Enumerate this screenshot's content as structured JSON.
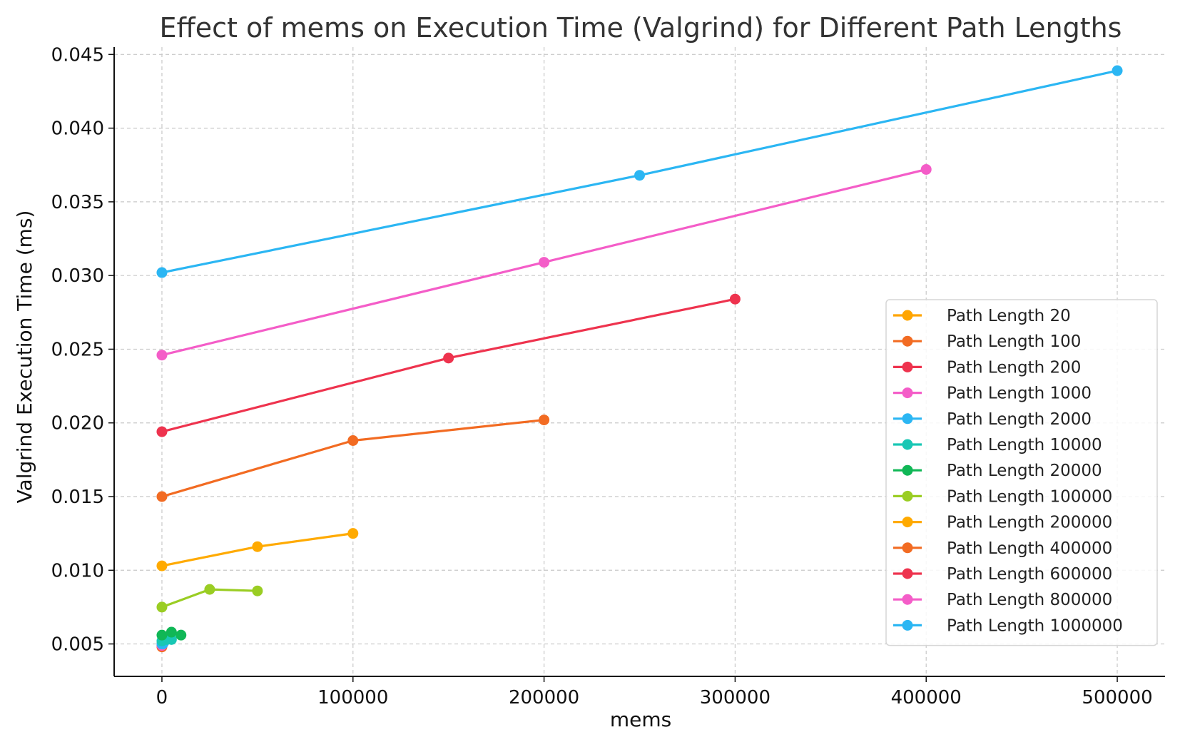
{
  "chart_data": {
    "type": "line",
    "title": "Effect of mems on Execution Time (Valgrind) for Different Path Lengths",
    "xlabel": "mems",
    "ylabel": "Valgrind Execution Time (ms)",
    "xlim": [
      -25000,
      525000
    ],
    "ylim": [
      0.0028,
      0.0455
    ],
    "x_ticks": [
      0,
      100000,
      200000,
      300000,
      400000,
      500000
    ],
    "x_tick_labels": [
      "0",
      "100000",
      "200000",
      "300000",
      "400000",
      "500000"
    ],
    "y_ticks": [
      0.005,
      0.01,
      0.015,
      0.02,
      0.025,
      0.03,
      0.035,
      0.04,
      0.045
    ],
    "y_tick_labels": [
      "0.005",
      "0.010",
      "0.015",
      "0.020",
      "0.025",
      "0.030",
      "0.035",
      "0.040",
      "0.045"
    ],
    "grid": true,
    "legend_position": "lower-right",
    "series": [
      {
        "name": "Path Length 20",
        "color": "#FFA500",
        "x": [
          0,
          5,
          10
        ],
        "y": [
          0.0049,
          0.005,
          0.005
        ]
      },
      {
        "name": "Path Length 100",
        "color": "#F26B22",
        "x": [
          0,
          25,
          50
        ],
        "y": [
          0.0048,
          0.0049,
          0.0049
        ]
      },
      {
        "name": "Path Length 200",
        "color": "#EE334E",
        "x": [
          0,
          50,
          100
        ],
        "y": [
          0.0049,
          0.0049,
          0.005
        ]
      },
      {
        "name": "Path Length 1000",
        "color": "#F45DC8",
        "x": [
          0,
          250,
          500
        ],
        "y": [
          0.0049,
          0.005,
          0.005
        ]
      },
      {
        "name": "Path Length 2000",
        "color": "#2BB6F3",
        "x": [
          0,
          500,
          1000
        ],
        "y": [
          0.005,
          0.005,
          0.0051
        ]
      },
      {
        "name": "Path Length 10000",
        "color": "#19C7B4",
        "x": [
          0,
          2500,
          5000
        ],
        "y": [
          0.0052,
          0.0053,
          0.0053
        ]
      },
      {
        "name": "Path Length 20000",
        "color": "#10B756",
        "x": [
          0,
          5000,
          10000
        ],
        "y": [
          0.0056,
          0.0058,
          0.0056
        ]
      },
      {
        "name": "Path Length 100000",
        "color": "#9ACD23",
        "x": [
          0,
          25000,
          50000
        ],
        "y": [
          0.0075,
          0.0087,
          0.0086
        ]
      },
      {
        "name": "Path Length 200000",
        "color": "#FFAA00",
        "x": [
          0,
          50000,
          100000
        ],
        "y": [
          0.0103,
          0.0116,
          0.0125
        ]
      },
      {
        "name": "Path Length 400000",
        "color": "#F26B22",
        "x": [
          0,
          100000,
          200000
        ],
        "y": [
          0.015,
          0.0188,
          0.0202
        ]
      },
      {
        "name": "Path Length 600000",
        "color": "#EE334E",
        "x": [
          0,
          150000,
          300000
        ],
        "y": [
          0.0194,
          0.0244,
          0.0284
        ]
      },
      {
        "name": "Path Length 800000",
        "color": "#F45DC8",
        "x": [
          0,
          200000,
          400000
        ],
        "y": [
          0.0246,
          0.0309,
          0.0372
        ]
      },
      {
        "name": "Path Length 1000000",
        "color": "#2BB6F3",
        "x": [
          0,
          250000,
          500000
        ],
        "y": [
          0.0302,
          0.0368,
          0.0439
        ]
      }
    ]
  }
}
